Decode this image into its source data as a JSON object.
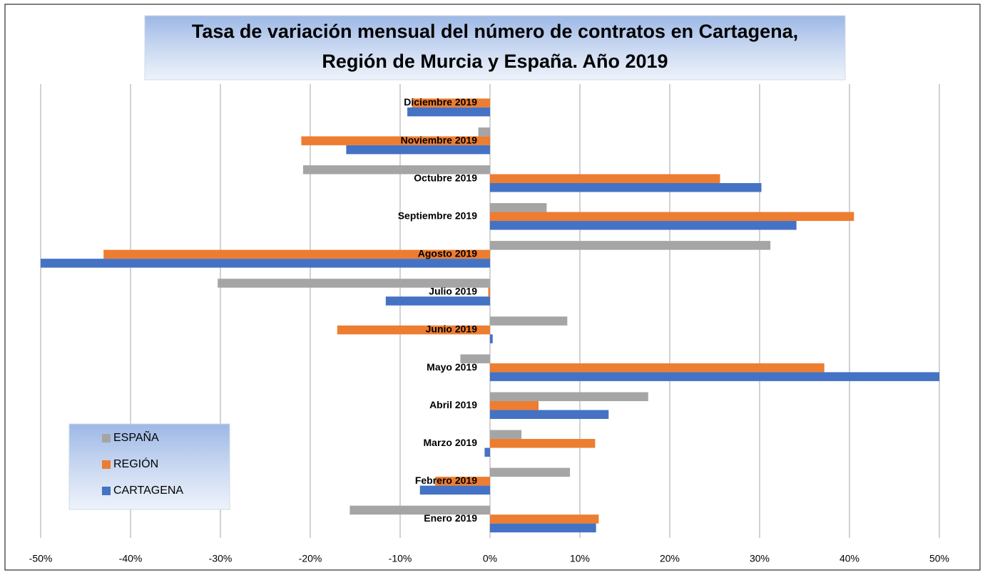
{
  "chart_data": {
    "type": "hbar",
    "title": [
      "Tasa de variación mensual del número de contratos en Cartagena,",
      "Región de Murcia y España. Año 2019"
    ],
    "categories": [
      "Enero 2019",
      "Febrero 2019",
      "Marzo 2019",
      "Abril 2019",
      "Mayo 2019",
      "Junio 2019",
      "Julio 2019",
      "Agosto 2019",
      "Septiembre 2019",
      "Octubre 2019",
      "Noviembre 2019",
      "Diciembre 2019"
    ],
    "series": [
      {
        "name": "ESPAÑA",
        "color": "#a5a5a5",
        "values": [
          -15.6,
          8.9,
          3.5,
          17.6,
          -3.3,
          8.6,
          -30.3,
          31.2,
          6.3,
          -20.8,
          -1.3,
          0
        ]
      },
      {
        "name": "REGIÓN",
        "color": "#ed7d31",
        "values": [
          12.1,
          -6.1,
          11.7,
          5.4,
          37.2,
          -17.0,
          -0.2,
          -43.0,
          40.5,
          25.6,
          -21.0,
          -8.7
        ]
      },
      {
        "name": "CARTAGENA",
        "color": "#4472c4",
        "values": [
          11.8,
          -7.8,
          -0.6,
          13.2,
          50,
          0.3,
          -11.6,
          -50,
          34.1,
          30.2,
          -16.0,
          -9.2
        ]
      }
    ],
    "xlim": [
      -50,
      50
    ],
    "xticks": [
      {
        "value": -50,
        "label": "-50%"
      },
      {
        "value": -40,
        "label": "-40%"
      },
      {
        "value": -30,
        "label": "-30%"
      },
      {
        "value": -20,
        "label": "-20%"
      },
      {
        "value": -10,
        "label": "-10%"
      },
      {
        "value": 0,
        "label": "0%"
      },
      {
        "value": 10,
        "label": "10%"
      },
      {
        "value": 20,
        "label": "20%"
      },
      {
        "value": 30,
        "label": "30%"
      },
      {
        "value": 40,
        "label": "40%"
      },
      {
        "value": 50,
        "label": "50%"
      }
    ],
    "grid": true,
    "legend": "bottom-left"
  }
}
